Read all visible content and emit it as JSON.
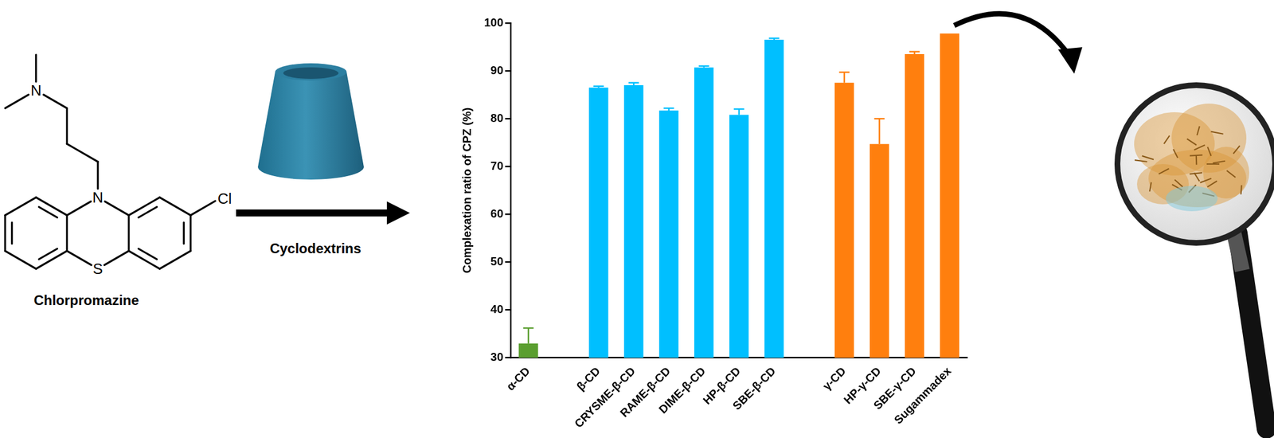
{
  "chart_data": {
    "type": "bar",
    "categories": [
      "α-CD",
      null,
      "β-CD",
      "CRYSME-β-CD",
      "RAME-β-CD",
      "DIME-β-CD",
      "HP-β-CD",
      "SBE-β-CD",
      null,
      "γ-CD",
      "HP-γ-CD",
      "SBE-γ-CD",
      "Sugammadex"
    ],
    "values": [
      33,
      null,
      86.5,
      87,
      81.7,
      90.7,
      80.8,
      96.5,
      null,
      87.5,
      74.7,
      93.5,
      97.8
    ],
    "errors": [
      3.2,
      null,
      0.3,
      0.5,
      0.5,
      0.3,
      1.2,
      0.3,
      null,
      2.2,
      5.3,
      0.5,
      null
    ],
    "colors": [
      "#5a9e2f",
      null,
      "#00bfff",
      "#00bfff",
      "#00bfff",
      "#00bfff",
      "#00bfff",
      "#00bfff",
      null,
      "#ff7f0e",
      "#ff7f0e",
      "#ff7f0e",
      "#ff7f0e"
    ],
    "y_label": "Complexation ratio of CPZ (%)",
    "ylim": [
      30,
      100
    ],
    "yticks": [
      30,
      40,
      50,
      60,
      70,
      80,
      90,
      100
    ],
    "grid": false
  },
  "scheme": {
    "molecule_name": "Chlorpromazine",
    "arrow_label": "Cyclodextrins",
    "atom_labels": {
      "amine": "N",
      "ring_nitrogen": "N",
      "sulfur": "S",
      "chlorine": "Cl"
    }
  }
}
